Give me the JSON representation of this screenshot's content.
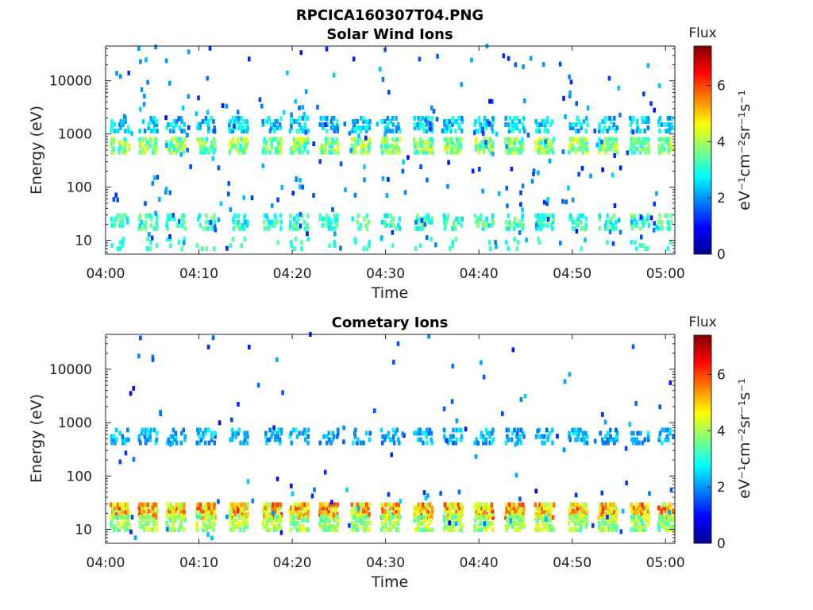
{
  "figure_title": "RPCICA160307T04.PNG",
  "chart_data": [
    {
      "type": "heatmap",
      "title": "Solar Wind Ions",
      "xlabel": "Time",
      "ylabel": "Energy (eV)",
      "x_ticks": [
        "04:00",
        "04:10",
        "04:20",
        "04:30",
        "04:40",
        "04:50",
        "05:00"
      ],
      "xlim_minutes": [
        0,
        61
      ],
      "yscale": "log",
      "ylim": [
        5.5,
        45000
      ],
      "y_ticks": [
        {
          "value": 10,
          "label": "10"
        },
        {
          "value": 100,
          "label": "100"
        },
        {
          "value": 1000,
          "label": "1000"
        },
        {
          "value": 10000,
          "label": "10000"
        }
      ],
      "colorbar": {
        "title": "Flux",
        "label": "eV⁻¹cm⁻²sr⁻¹s⁻¹",
        "ticks": [
          "0",
          "2",
          "4",
          "6"
        ],
        "range": [
          0,
          7.4
        ],
        "colormap": "jet"
      },
      "bursts_minutes": [
        1.5,
        4.5,
        7.5,
        10.7,
        14.2,
        17.8,
        20.7,
        23.9,
        27.3,
        30.5,
        34.0,
        37.2,
        40.5,
        43.8,
        47.0,
        50.6,
        53.8,
        57.2,
        60.2
      ],
      "bands": [
        {
          "energy_ev": 1500,
          "flux_range": [
            1.8,
            3.2
          ],
          "density": 0.55
        },
        {
          "energy_ev": 600,
          "flux_range": [
            2.8,
            4.6
          ],
          "density": 0.8
        },
        {
          "energy_ev": 22,
          "flux_range": [
            2.5,
            3.8
          ],
          "density": 0.55
        },
        {
          "energy_ev": 8,
          "flux_range": [
            2.8,
            3.6
          ],
          "density": 0.15
        }
      ],
      "scatter_flux_range": [
        1.0,
        2.5
      ]
    },
    {
      "type": "heatmap",
      "title": "Cometary Ions",
      "xlabel": "Time",
      "ylabel": "Energy (eV)",
      "x_ticks": [
        "04:00",
        "04:10",
        "04:20",
        "04:30",
        "04:40",
        "04:50",
        "05:00"
      ],
      "xlim_minutes": [
        0,
        61
      ],
      "yscale": "log",
      "ylim": [
        5.5,
        45000
      ],
      "y_ticks": [
        {
          "value": 10,
          "label": "10"
        },
        {
          "value": 100,
          "label": "100"
        },
        {
          "value": 1000,
          "label": "1000"
        },
        {
          "value": 10000,
          "label": "10000"
        }
      ],
      "colorbar": {
        "title": "Flux",
        "label": "eV⁻¹cm⁻²sr⁻¹s⁻¹",
        "ticks": [
          "0",
          "2",
          "4",
          "6"
        ],
        "range": [
          0,
          7.4
        ],
        "colormap": "jet"
      },
      "bursts_minutes": [
        1.5,
        4.5,
        7.5,
        10.7,
        14.2,
        17.8,
        20.7,
        23.9,
        27.3,
        30.5,
        34.0,
        37.2,
        40.5,
        43.8,
        47.0,
        50.6,
        53.8,
        57.2,
        60.2
      ],
      "bands": [
        {
          "energy_ev": 550,
          "flux_range": [
            1.6,
            2.8
          ],
          "density": 0.45
        },
        {
          "energy_ev": 22,
          "flux_range": [
            3.8,
            6.2
          ],
          "density": 0.9
        },
        {
          "energy_ev": 13,
          "flux_range": [
            3.2,
            4.6
          ],
          "density": 0.7
        }
      ],
      "scatter_flux_range": [
        1.0,
        2.5
      ]
    }
  ]
}
